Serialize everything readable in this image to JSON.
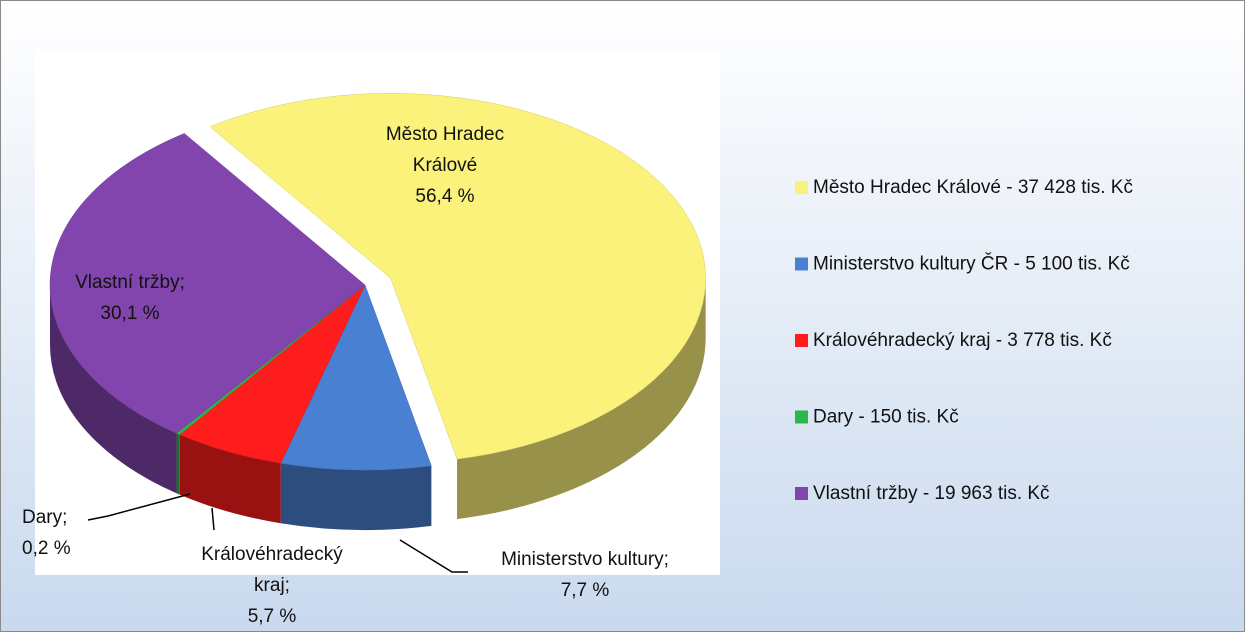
{
  "chart_data": {
    "type": "pie",
    "categories": [
      "Město Hradec Králové - 37 428 tis. Kč",
      "Ministerstvo kultury ČR - 5 100 tis. Kč",
      "Královéhradecký kraj - 3 778 tis. Kč",
      "Dary - 150 tis. Kč",
      "Vlastní tržby - 19 963 tis. Kč"
    ],
    "label_lines": [
      [
        "Město Hradec",
        "Králové"
      ],
      [
        "Ministerstvo kultury;"
      ],
      [
        "Královéhradecký",
        "kraj;"
      ],
      [
        "Dary;"
      ],
      [
        "Vlastní tržby;"
      ]
    ],
    "values": [
      56.4,
      7.7,
      5.7,
      0.2,
      30.1
    ],
    "value_labels": [
      "56,4 %",
      "7,7 %",
      "5,7 %",
      "0,2 %",
      "30,1 %"
    ],
    "colors": [
      "#fbf27c",
      "#4a80d2",
      "#ff1c1c",
      "#2db64a",
      "#8145ad"
    ],
    "legend": "right"
  }
}
